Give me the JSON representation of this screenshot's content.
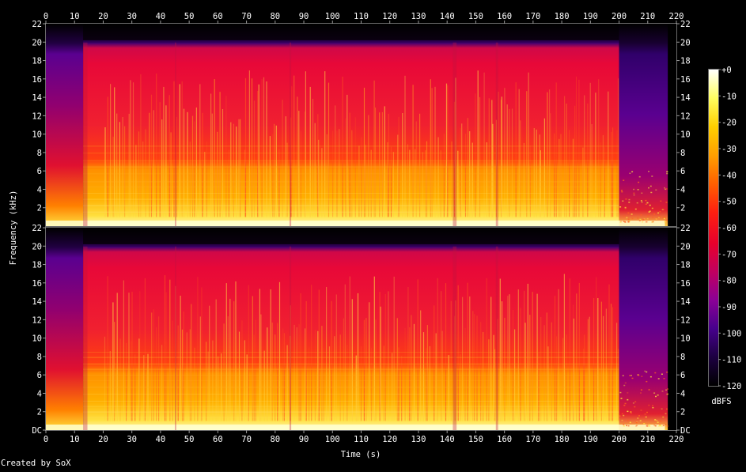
{
  "chart_data": {
    "type": "heatmap",
    "kind": "spectrogram",
    "channels": 2,
    "xlabel": "Time (s)",
    "ylabel": "Frequency (kHz)",
    "xlim": [
      0,
      220
    ],
    "ylim": [
      0,
      22
    ],
    "x_ticks": [
      0,
      10,
      20,
      30,
      40,
      50,
      60,
      70,
      80,
      90,
      100,
      110,
      120,
      130,
      140,
      150,
      160,
      170,
      180,
      190,
      200,
      210,
      220
    ],
    "y_ticks": [
      {
        "value": 0,
        "label": "DC"
      },
      {
        "value": 2,
        "label": "2"
      },
      {
        "value": 4,
        "label": "4"
      },
      {
        "value": 6,
        "label": "6"
      },
      {
        "value": 8,
        "label": "8"
      },
      {
        "value": 10,
        "label": "10"
      },
      {
        "value": 12,
        "label": "12"
      },
      {
        "value": 14,
        "label": "14"
      },
      {
        "value": 16,
        "label": "16"
      },
      {
        "value": 18,
        "label": "18"
      },
      {
        "value": 20,
        "label": "20"
      },
      {
        "value": 22,
        "label": "22"
      }
    ],
    "colorbar": {
      "label": "dBFS",
      "range": [
        -120,
        0
      ],
      "ticks": [
        {
          "value": 0,
          "label": "+0"
        },
        {
          "value": -10,
          "label": "-10"
        },
        {
          "value": -20,
          "label": "-20"
        },
        {
          "value": -30,
          "label": "-30"
        },
        {
          "value": -40,
          "label": "-40"
        },
        {
          "value": -50,
          "label": "-50"
        },
        {
          "value": -60,
          "label": "-60"
        },
        {
          "value": -70,
          "label": "-70"
        },
        {
          "value": -80,
          "label": "-80"
        },
        {
          "value": -90,
          "label": "-90"
        },
        {
          "value": -100,
          "label": "-100"
        },
        {
          "value": -110,
          "label": "-110"
        },
        {
          "value": -120,
          "label": "-120"
        }
      ],
      "colors": [
        "#000000",
        "#1c0040",
        "#46008c",
        "#8a0096",
        "#c00060",
        "#e8002c",
        "#ff2010",
        "#ff6000",
        "#ffa000",
        "#ffd000",
        "#ffff60",
        "#ffffff"
      ]
    },
    "lowpass_cutoff_khz": 20,
    "music_end_s": 200,
    "quiet_intro_end_s": 13,
    "credit": "Created by SoX"
  }
}
